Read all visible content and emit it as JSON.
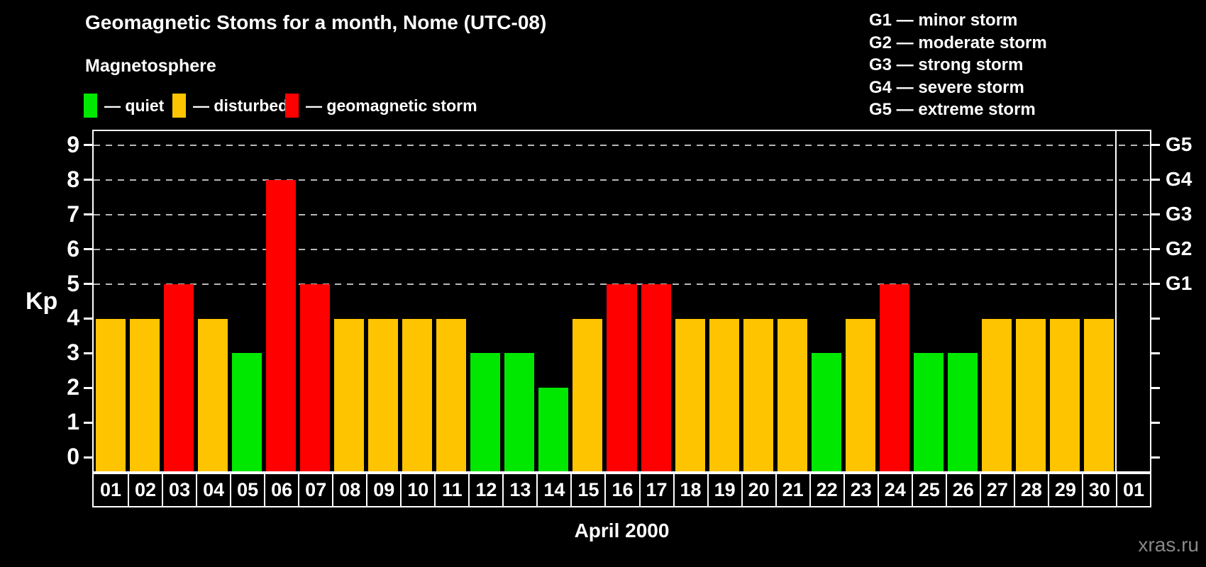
{
  "page": {
    "background": "#000000"
  },
  "header": {
    "title": "Geomagnetic Stoms for a month, Nome (UTC-08)"
  },
  "magnetosphere_legend": {
    "title": "Magnetosphere",
    "items": [
      {
        "name": "quiet",
        "label": "— quiet",
        "color": "#00e800"
      },
      {
        "name": "disturbed",
        "label": "— disturbed",
        "color": "#ffc400"
      },
      {
        "name": "storm",
        "label": "— geomagnetic storm",
        "color": "#ff0000"
      }
    ]
  },
  "storm_scale_legend": {
    "items": [
      {
        "label": "G1 — minor storm"
      },
      {
        "label": "G2 — moderate storm"
      },
      {
        "label": "G3 — strong storm"
      },
      {
        "label": "G4 — severe storm"
      },
      {
        "label": "G5 — extreme storm"
      }
    ]
  },
  "footer": {
    "month_label": "April 2000",
    "watermark": "xras.ru"
  },
  "chart_data": {
    "type": "bar",
    "title": "Geomagnetic Stoms for a month, Nome (UTC-08)",
    "xlabel": "April 2000",
    "ylabel": "Kp",
    "ylim": [
      -0.4,
      9.4
    ],
    "yticks": [
      0,
      1,
      2,
      3,
      4,
      5,
      6,
      7,
      8,
      9
    ],
    "gridlines_at": [
      5,
      6,
      7,
      8,
      9
    ],
    "grid": "dashed horizontal lines at Kp 5-9 only",
    "legend_position": "top-left",
    "right_axis": {
      "ticks": [
        0,
        1,
        2,
        3,
        4,
        5,
        6,
        7,
        8,
        9
      ],
      "labels": [
        {
          "at": 5,
          "label": "G1"
        },
        {
          "at": 6,
          "label": "G2"
        },
        {
          "at": 7,
          "label": "G3"
        },
        {
          "at": 8,
          "label": "G4"
        },
        {
          "at": 9,
          "label": "G5"
        }
      ]
    },
    "categories": [
      "01",
      "02",
      "03",
      "04",
      "05",
      "06",
      "07",
      "08",
      "09",
      "10",
      "11",
      "12",
      "13",
      "14",
      "15",
      "16",
      "17",
      "18",
      "19",
      "20",
      "21",
      "22",
      "23",
      "24",
      "25",
      "26",
      "27",
      "28",
      "29",
      "30",
      "01"
    ],
    "values": [
      4,
      4,
      5,
      4,
      3,
      8,
      5,
      4,
      4,
      4,
      4,
      3,
      3,
      2,
      4,
      5,
      5,
      4,
      4,
      4,
      4,
      3,
      4,
      5,
      3,
      3,
      4,
      4,
      4,
      4,
      null
    ],
    "states": [
      "disturbed",
      "disturbed",
      "storm",
      "disturbed",
      "quiet",
      "storm",
      "storm",
      "disturbed",
      "disturbed",
      "disturbed",
      "disturbed",
      "quiet",
      "quiet",
      "quiet",
      "disturbed",
      "storm",
      "storm",
      "disturbed",
      "disturbed",
      "disturbed",
      "disturbed",
      "quiet",
      "disturbed",
      "storm",
      "quiet",
      "quiet",
      "disturbed",
      "disturbed",
      "disturbed",
      "disturbed",
      "none"
    ],
    "colors": {
      "quiet": "#00e800",
      "disturbed": "#ffc400",
      "storm": "#ff0000"
    }
  }
}
